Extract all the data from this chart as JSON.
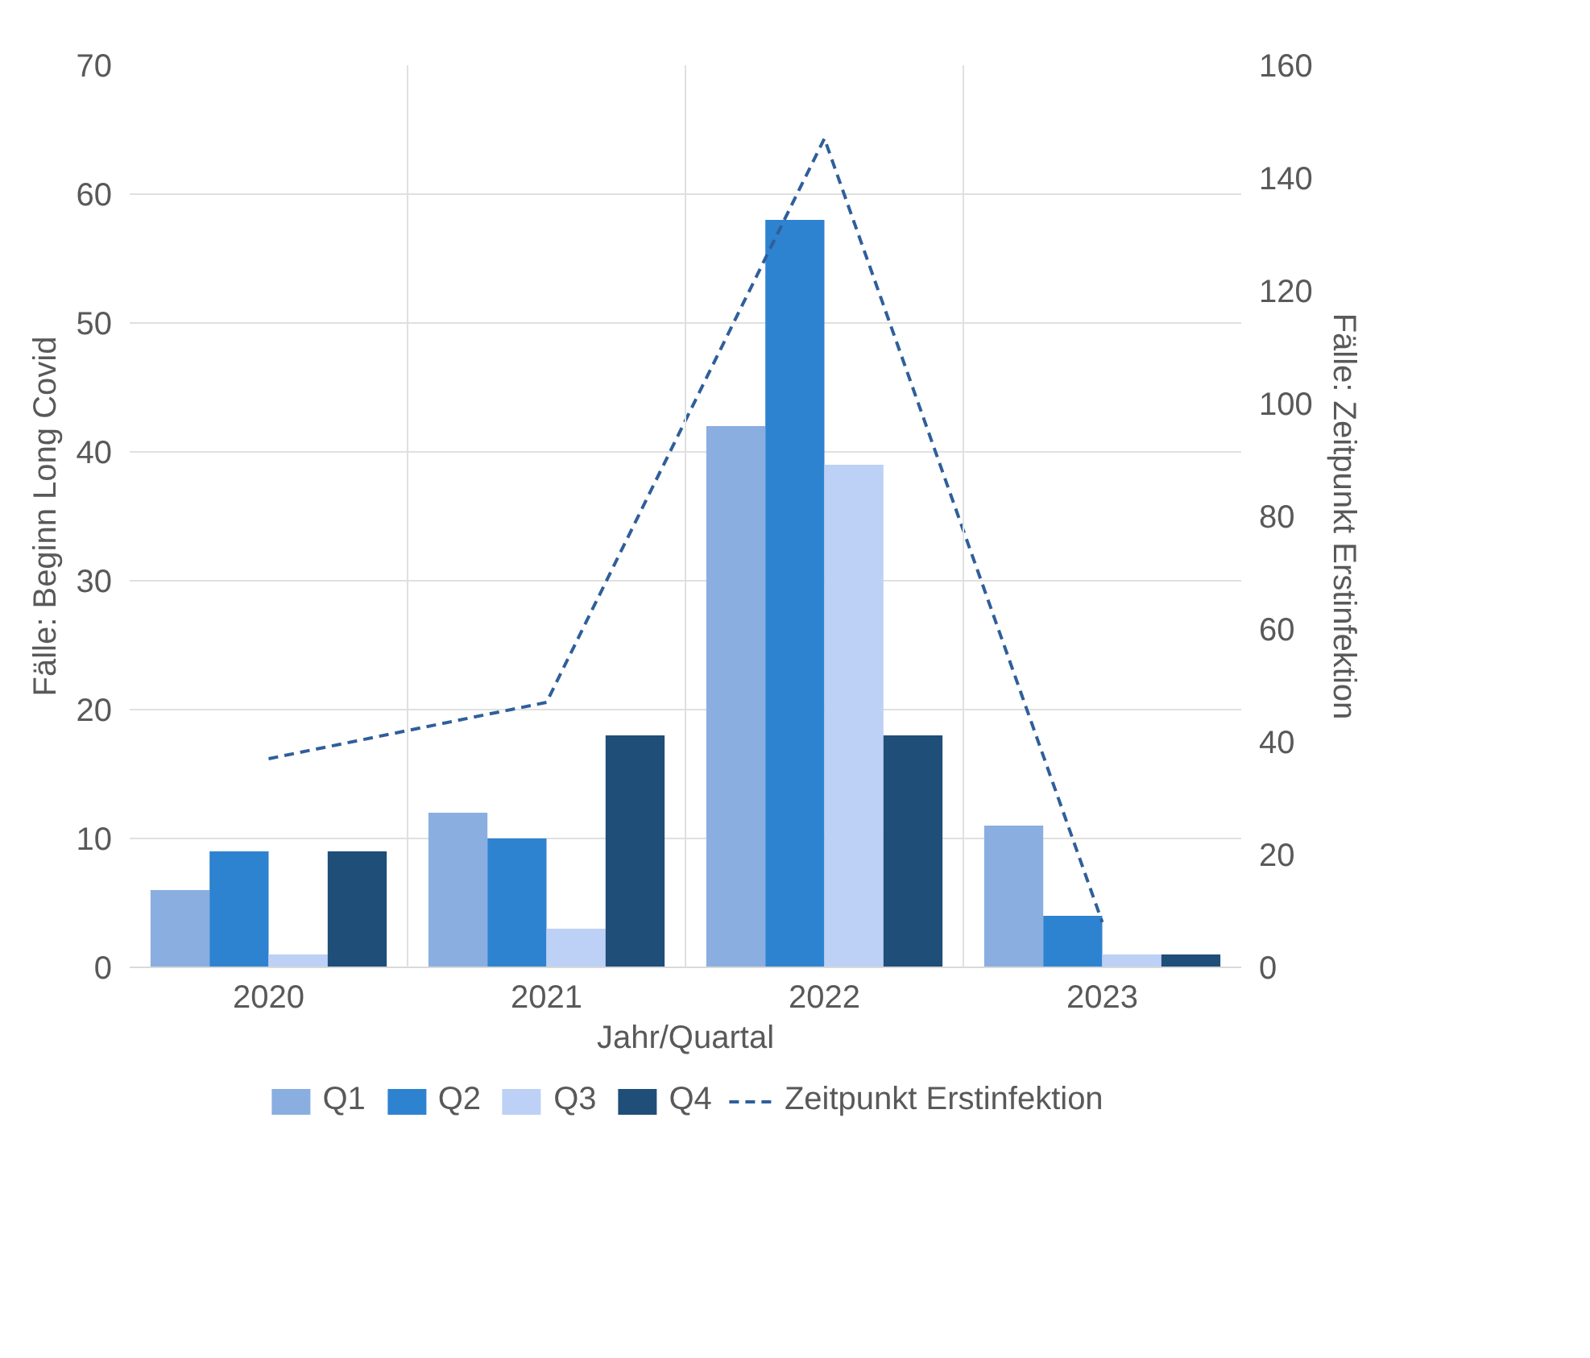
{
  "chart_data": {
    "type": "bar",
    "xlabel": "Jahr/Quartal",
    "ylabel": "Fälle: Beginn Long Covid",
    "y2label": "Fälle: Zeitpunkt Erstinfektion",
    "categories": [
      "2020",
      "2021",
      "2022",
      "2023"
    ],
    "series": [
      {
        "name": "Q1",
        "color": "#8aaee0",
        "values": [
          6,
          12,
          42,
          11
        ]
      },
      {
        "name": "Q2",
        "color": "#2e83d0",
        "values": [
          9,
          10,
          58,
          4
        ]
      },
      {
        "name": "Q3",
        "color": "#bdd0f5",
        "values": [
          1,
          3,
          39,
          1
        ]
      },
      {
        "name": "Q4",
        "color": "#1f4e79",
        "values": [
          9,
          18,
          18,
          1
        ]
      },
      {
        "name": "Zeitpunkt Erstinfektion",
        "type": "line",
        "axis": "y2",
        "color": "#2f5f9a",
        "line_style": "dashed",
        "marker": "none",
        "values": [
          37,
          47,
          147,
          8
        ]
      }
    ],
    "ylim": [
      0,
      70
    ],
    "yticks": [
      0,
      10,
      20,
      30,
      40,
      50,
      60,
      70
    ],
    "y2lim": [
      0,
      160
    ],
    "y2ticks": [
      0,
      20,
      40,
      60,
      80,
      100,
      120,
      140,
      160
    ],
    "grid": true,
    "legend": "bottom"
  }
}
